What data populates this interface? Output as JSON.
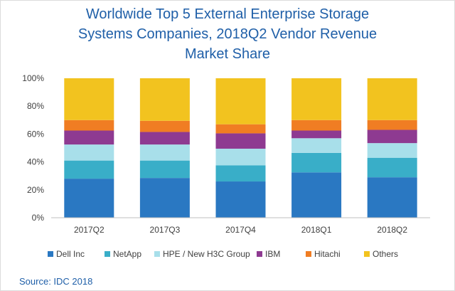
{
  "chart_data": {
    "type": "stacked_bar_100",
    "title_lines": [
      "Worldwide Top 5 External Enterprise Storage",
      "Systems Companies, 2018Q2 Vendor Revenue",
      "Market Share"
    ],
    "categories": [
      "2017Q2",
      "2017Q3",
      "2017Q4",
      "2018Q1",
      "2018Q2"
    ],
    "yticks": [
      "0%",
      "20%",
      "40%",
      "60%",
      "80%",
      "100%"
    ],
    "ylim": [
      0,
      100
    ],
    "grid": false,
    "legend_position": "bottom",
    "series": [
      {
        "name": "Dell Inc",
        "color": "#2a78c2",
        "values": [
          28,
          28.5,
          26,
          32.5,
          29
        ]
      },
      {
        "name": "NetApp",
        "color": "#39aec8",
        "values": [
          13,
          12.5,
          11.5,
          14,
          14
        ]
      },
      {
        "name": "HPE / New H3C Group",
        "color": "#a8dfea",
        "values": [
          11.5,
          11.5,
          12,
          10.5,
          10.5
        ]
      },
      {
        "name": "IBM",
        "color": "#8e3a91",
        "values": [
          10,
          9,
          11,
          5.5,
          9.5
        ]
      },
      {
        "name": "Hitachi",
        "color": "#f07d23",
        "values": [
          7.5,
          8,
          6.5,
          7.5,
          7
        ]
      },
      {
        "name": "Others",
        "color": "#f2c31f",
        "values": [
          30,
          30.5,
          33,
          30,
          30
        ]
      }
    ]
  },
  "source": "Source: IDC 2018"
}
